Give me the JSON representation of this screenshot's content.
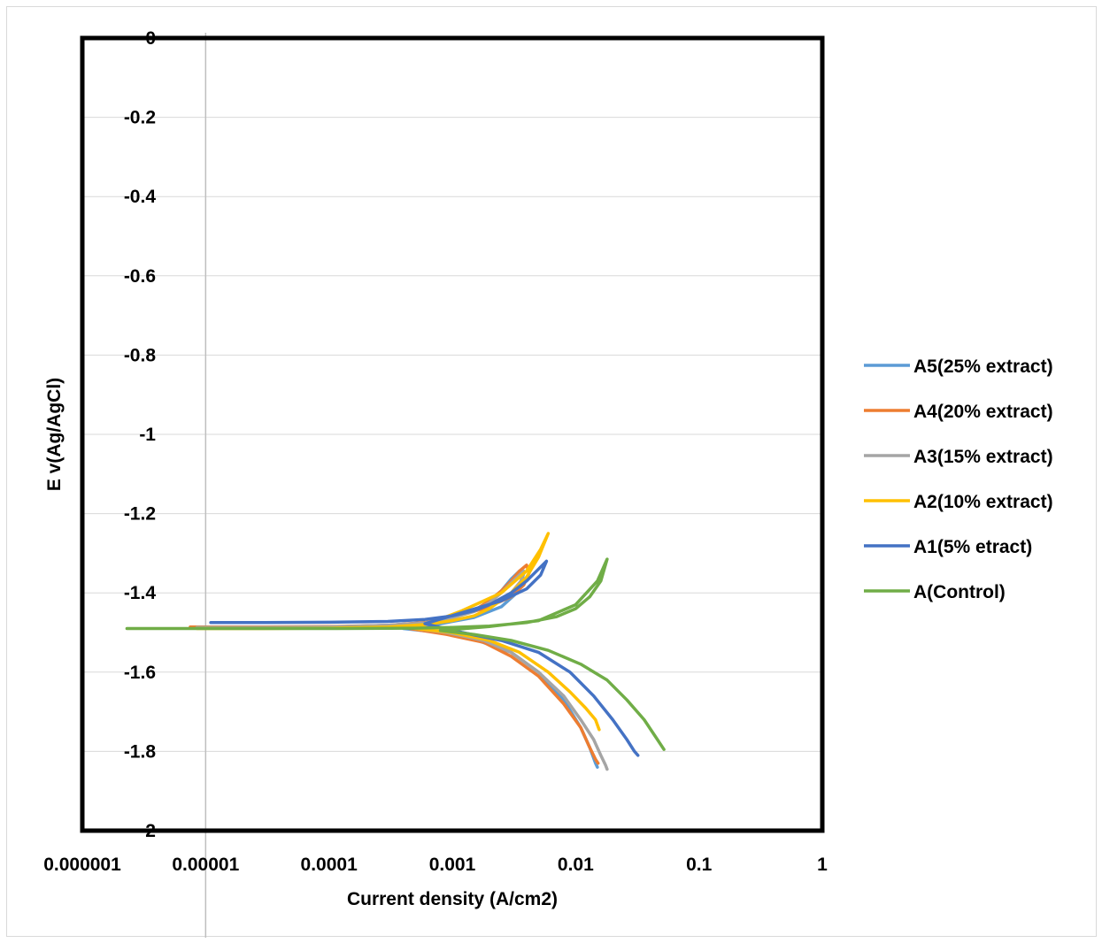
{
  "chart_data": {
    "type": "line",
    "title": "",
    "xlabel": "Current density (A/cm2)",
    "ylabel": "E v(Ag/AgCl)",
    "x_scale": "log",
    "xlim": [
      1e-06,
      1
    ],
    "ylim": [
      -2,
      0
    ],
    "x_ticks": [
      "0.000001",
      "0.00001",
      "0.0001",
      "0.001",
      "0.01",
      "0.1",
      "1"
    ],
    "y_ticks": [
      "0",
      "-0.2",
      "-0.4",
      "-0.6",
      "-0.8",
      "-1",
      "-1.2",
      "-1.4",
      "-1.6",
      "-1.8",
      "-2"
    ],
    "grid": {
      "horizontal": true,
      "vertical_at_x": 1e-05
    },
    "legend_position": "right",
    "series": [
      {
        "name": "A5(25% extract)",
        "color": "#5b9bd5",
        "x": [
          8.5e-06,
          3e-05,
          0.0001,
          0.0003,
          0.0006,
          0.001,
          0.0015,
          0.002,
          0.0025,
          0.003,
          0.0035,
          0.0038,
          0.0036,
          0.0032,
          0.0025,
          0.0015,
          0.0008,
          0.0004,
          0.0008,
          0.0016,
          0.003,
          0.005,
          0.008,
          0.011,
          0.013,
          0.0145,
          0.015
        ],
        "y": [
          -1.487,
          -1.487,
          -1.486,
          -1.482,
          -1.475,
          -1.462,
          -1.445,
          -1.42,
          -1.395,
          -1.365,
          -1.345,
          -1.35,
          -1.375,
          -1.405,
          -1.435,
          -1.462,
          -1.478,
          -1.49,
          -1.5,
          -1.52,
          -1.55,
          -1.6,
          -1.67,
          -1.74,
          -1.79,
          -1.83,
          -1.84
        ]
      },
      {
        "name": "A4(20% extract)",
        "color": "#ed7d31",
        "x": [
          7.5e-06,
          3e-05,
          0.0001,
          0.0003,
          0.0006,
          0.001,
          0.0015,
          0.002,
          0.0025,
          0.003,
          0.0035,
          0.004,
          0.0042,
          0.0038,
          0.003,
          0.0018,
          0.0009,
          0.00045,
          0.0009,
          0.0018,
          0.003,
          0.005,
          0.008,
          0.011,
          0.013,
          0.0145,
          0.0152
        ],
        "y": [
          -1.486,
          -1.486,
          -1.485,
          -1.482,
          -1.475,
          -1.462,
          -1.445,
          -1.42,
          -1.395,
          -1.37,
          -1.345,
          -1.33,
          -1.35,
          -1.38,
          -1.41,
          -1.44,
          -1.465,
          -1.49,
          -1.505,
          -1.525,
          -1.56,
          -1.61,
          -1.68,
          -1.74,
          -1.79,
          -1.82,
          -1.83
        ]
      },
      {
        "name": "A3(15% extract)",
        "color": "#a5a5a5",
        "x": [
          8.5e-06,
          3e-05,
          0.0001,
          0.0003,
          0.0006,
          0.001,
          0.0015,
          0.002,
          0.0025,
          0.003,
          0.0035,
          0.0038,
          0.0036,
          0.003,
          0.002,
          0.001,
          0.0005,
          0.0009,
          0.0018,
          0.003,
          0.005,
          0.008,
          0.011,
          0.014,
          0.016,
          0.0175,
          0.018
        ],
        "y": [
          -1.487,
          -1.487,
          -1.486,
          -1.482,
          -1.476,
          -1.463,
          -1.447,
          -1.425,
          -1.4,
          -1.375,
          -1.355,
          -1.345,
          -1.37,
          -1.4,
          -1.43,
          -1.462,
          -1.49,
          -1.5,
          -1.52,
          -1.55,
          -1.6,
          -1.66,
          -1.72,
          -1.77,
          -1.81,
          -1.835,
          -1.845
        ]
      },
      {
        "name": "A2(10% extract)",
        "color": "#ffc000",
        "x": [
          8.5e-06,
          3e-05,
          0.0001,
          0.0003,
          0.0006,
          0.001,
          0.0015,
          0.002,
          0.003,
          0.004,
          0.005,
          0.006,
          0.0052,
          0.004,
          0.0025,
          0.0012,
          0.0005,
          0.001,
          0.002,
          0.0035,
          0.006,
          0.009,
          0.012,
          0.0145,
          0.0155
        ],
        "y": [
          -1.49,
          -1.49,
          -1.489,
          -1.486,
          -1.48,
          -1.47,
          -1.458,
          -1.44,
          -1.4,
          -1.36,
          -1.31,
          -1.25,
          -1.29,
          -1.345,
          -1.4,
          -1.445,
          -1.49,
          -1.5,
          -1.52,
          -1.55,
          -1.6,
          -1.65,
          -1.69,
          -1.72,
          -1.745
        ]
      },
      {
        "name": "A1(5% etract)",
        "color": "#4472c4",
        "x": [
          1.1e-05,
          3e-05,
          0.0001,
          0.0003,
          0.0006,
          0.001,
          0.0015,
          0.002,
          0.003,
          0.004,
          0.005,
          0.0058,
          0.0052,
          0.004,
          0.0025,
          0.0012,
          0.0006,
          0.0012,
          0.0025,
          0.005,
          0.009,
          0.014,
          0.02,
          0.026,
          0.03,
          0.032
        ],
        "y": [
          -1.475,
          -1.475,
          -1.474,
          -1.472,
          -1.467,
          -1.458,
          -1.445,
          -1.43,
          -1.4,
          -1.37,
          -1.34,
          -1.32,
          -1.355,
          -1.39,
          -1.42,
          -1.45,
          -1.478,
          -1.5,
          -1.52,
          -1.55,
          -1.6,
          -1.66,
          -1.72,
          -1.77,
          -1.8,
          -1.81
        ]
      },
      {
        "name": "A(Control)",
        "color": "#70ad47",
        "x": [
          2.3e-06,
          1e-05,
          0.0001,
          0.0005,
          0.001,
          0.002,
          0.004,
          0.007,
          0.01,
          0.013,
          0.016,
          0.018,
          0.015,
          0.01,
          0.005,
          0.002,
          0.0008,
          0.0015,
          0.003,
          0.006,
          0.011,
          0.018,
          0.026,
          0.036,
          0.046,
          0.052
        ],
        "y": [
          -1.49,
          -1.49,
          -1.49,
          -1.489,
          -1.487,
          -1.484,
          -1.475,
          -1.46,
          -1.44,
          -1.41,
          -1.37,
          -1.315,
          -1.37,
          -1.43,
          -1.47,
          -1.485,
          -1.495,
          -1.505,
          -1.52,
          -1.545,
          -1.58,
          -1.62,
          -1.67,
          -1.72,
          -1.77,
          -1.795
        ]
      }
    ]
  }
}
